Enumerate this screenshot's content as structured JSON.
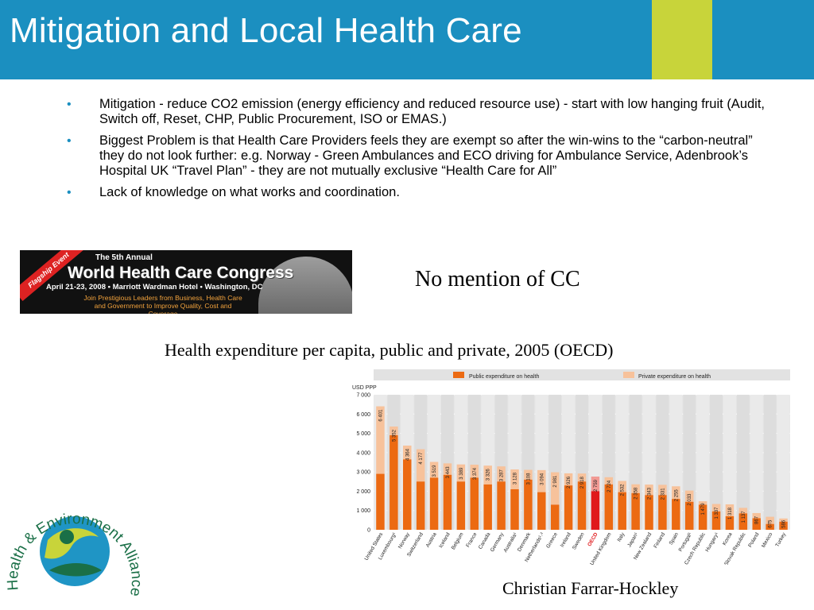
{
  "slide": {
    "title": "Mitigation and Local Health Care",
    "bullets": [
      "Mitigation - reduce CO2 emission (energy efficiency and reduced resource use)  - start with low hanging fruit (Audit, Switch off, Reset, CHP, Public Procurement, ISO or EMAS.)",
      "Biggest Problem is that Health Care Providers feels they are exempt so after the win-wins to the “carbon-neutral” they do not look further: e.g. Norway - Green Ambulances and ECO driving for Ambulance Service, Adenbrook’s Hospital UK “Travel Plan”  - they are not mutually exclusive “Health Care for All”",
      "Lack of knowledge on what works and coordination."
    ],
    "bullet_glyph": "•",
    "note": "No mention of CC",
    "chart_caption": "Health expenditure per capita, public and private, 2005 (OECD)",
    "author": "Christian Farrar-Hockley",
    "colors": {
      "header": "#1b8fc0",
      "accent": "#c8d43a",
      "public": "#ec6a12",
      "private": "#f7c29b",
      "oecd_public": "#e0191b",
      "oecd_private": "#f29a94"
    }
  },
  "banner": {
    "flag": "Flagship Event",
    "annual": "The 5th Annual",
    "name": "World Health Care Congress",
    "date_line": "April 21-23, 2008 • Marriott Wardman Hotel • Washington, DC",
    "tagline": "Join Prestigious Leaders from Business, Health Care and Government to Improve Quality, Cost and Coverage"
  },
  "logo": {
    "text": "Health & Environment Alliance"
  },
  "chart_data": {
    "type": "bar",
    "stacked": true,
    "ylabel": "USD PPP",
    "ylim": [
      0,
      7000
    ],
    "yticks": [
      "0",
      "1 000",
      "2 000",
      "3 000",
      "4 000",
      "5 000",
      "6 000",
      "7 000"
    ],
    "grid": true,
    "legend_position": "top",
    "highlight_category": "OECD",
    "categories": [
      "United States",
      "Luxembourg¹",
      "Norway",
      "Switzerland",
      "Austria",
      "Iceland",
      "Belgium",
      "France",
      "Canada",
      "Germany",
      "Australia¹",
      "Denmark",
      "Netherlands¹˒²",
      "Greece",
      "Ireland",
      "Sweden",
      "OECD",
      "United Kingdom",
      "Italy",
      "Japan¹",
      "New Zealand",
      "Finland",
      "Spain",
      "Portugal¹",
      "Czech Republic",
      "Hungary¹",
      "Korea",
      "Slovak Republic",
      "Poland",
      "Mexico",
      "Turkey"
    ],
    "totals": [
      6401,
      5352,
      4364,
      4177,
      3519,
      3443,
      3389,
      3374,
      3326,
      3287,
      3128,
      3108,
      3094,
      2981,
      2926,
      2918,
      2759,
      2724,
      2532,
      2358,
      2343,
      2331,
      2255,
      2033,
      1479,
      1337,
      1318,
      1137,
      867,
      675,
      586
    ],
    "total_labels": [
      "6 401",
      "5 352",
      "4 364",
      "4 177",
      "3 519",
      "3 443",
      "3 389",
      "3 374",
      "3 326",
      "3 287",
      "3 128",
      "3 108",
      "3 094",
      "2 981",
      "2 926",
      "2 918",
      "2 759",
      "2 724",
      "2 532",
      "2 358",
      "2 343",
      "2 331",
      "2 255",
      "2 033",
      "1 479",
      "1 337",
      "1 318",
      "1 137",
      "867",
      "675",
      "586"
    ],
    "series": [
      {
        "name": "Public expenditure on health",
        "values": [
          2900,
          4900,
          3650,
          2500,
          2700,
          2850,
          2500,
          2700,
          2350,
          2500,
          2100,
          2600,
          1950,
          1300,
          2300,
          2500,
          2000,
          2350,
          1950,
          1900,
          1800,
          1800,
          1600,
          1450,
          1300,
          950,
          700,
          850,
          600,
          300,
          420
        ]
      },
      {
        "name": "Private expenditure on health",
        "values": [
          3501,
          452,
          714,
          1677,
          819,
          593,
          889,
          674,
          976,
          787,
          1028,
          508,
          1144,
          1681,
          626,
          418,
          759,
          374,
          582,
          458,
          543,
          531,
          655,
          583,
          179,
          387,
          618,
          287,
          267,
          375,
          166
        ]
      }
    ]
  }
}
